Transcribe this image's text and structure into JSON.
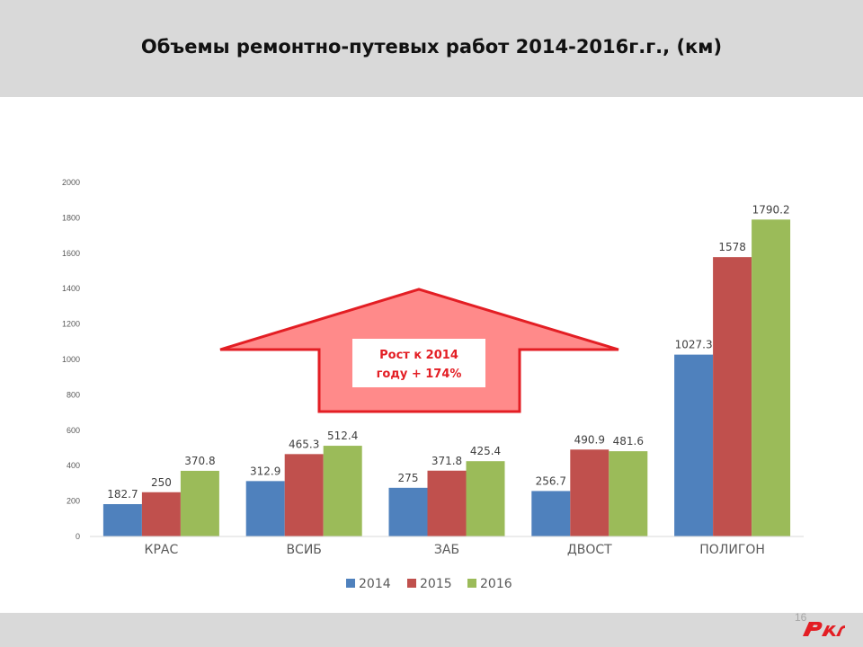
{
  "slide": {
    "title": "Объемы ремонтно-путевых работ 2014-2016г.г., (км)",
    "page_number": "16"
  },
  "logo": {
    "name": "rzd-logo",
    "text": "РЖД",
    "color": "#e31e24"
  },
  "colors": {
    "series_2014": "#4f81bd",
    "series_2015": "#c0504d",
    "series_2016": "#9bbb59",
    "arrow_fill": "#ff8a8a",
    "arrow_stroke": "#e31e24"
  },
  "chart_data": {
    "type": "bar",
    "categories": [
      "КРАС",
      "ВСИБ",
      "ЗАБ",
      "ДВОСТ",
      "ПОЛИГОН"
    ],
    "series": [
      {
        "name": "2014",
        "values": [
          182.7,
          312.9,
          275,
          256.7,
          1027.3
        ]
      },
      {
        "name": "2015",
        "values": [
          250,
          465.3,
          371.8,
          490.9,
          1578
        ]
      },
      {
        "name": "2016",
        "values": [
          370.8,
          512.4,
          425.4,
          481.6,
          1790.2
        ]
      }
    ],
    "ylim": [
      0,
      2000
    ],
    "yticks": [
      0,
      200,
      400,
      600,
      800,
      1000,
      1200,
      1400,
      1600,
      1800,
      2000
    ],
    "grid": false,
    "legend_position": "bottom",
    "annotation": {
      "lines": [
        "Рост к 2014",
        "году + 174%"
      ]
    }
  }
}
